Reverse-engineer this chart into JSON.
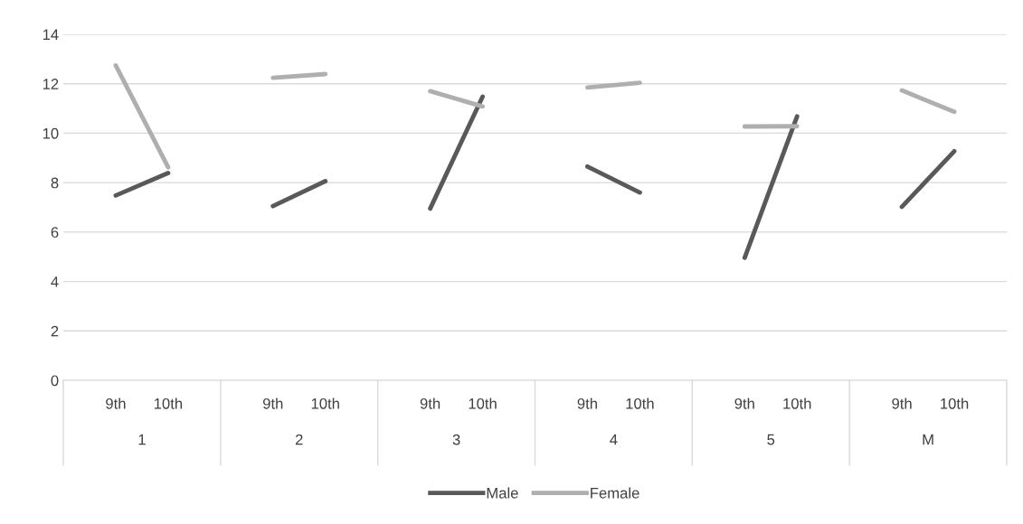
{
  "chart_data": {
    "type": "line",
    "categories": [
      "9th",
      "10th",
      "9th",
      "10th",
      "9th",
      "10th",
      "9th",
      "10th",
      "9th",
      "10th",
      "9th",
      "10th"
    ],
    "annotations": [
      "1",
      "2",
      "3",
      "4",
      "5",
      "M"
    ],
    "series": [
      {
        "name": "Male",
        "color": "#595959",
        "values": [
          7.48,
          8.39,
          7.05,
          8.06,
          6.95,
          11.48,
          8.65,
          7.6,
          4.96,
          10.68,
          7.02,
          9.27
        ]
      },
      {
        "name": "Female",
        "color": "#afafaf",
        "values": [
          12.74,
          8.62,
          12.24,
          12.39,
          11.7,
          11.08,
          11.85,
          12.04,
          10.27,
          10.28,
          11.73,
          10.87
        ]
      }
    ],
    "ylim": [
      0,
      14
    ],
    "yticks": [
      0,
      2,
      4,
      6,
      8,
      10,
      12,
      14
    ],
    "grid": "y",
    "legend": "bottom",
    "marker": "none",
    "line_style": "solid"
  }
}
